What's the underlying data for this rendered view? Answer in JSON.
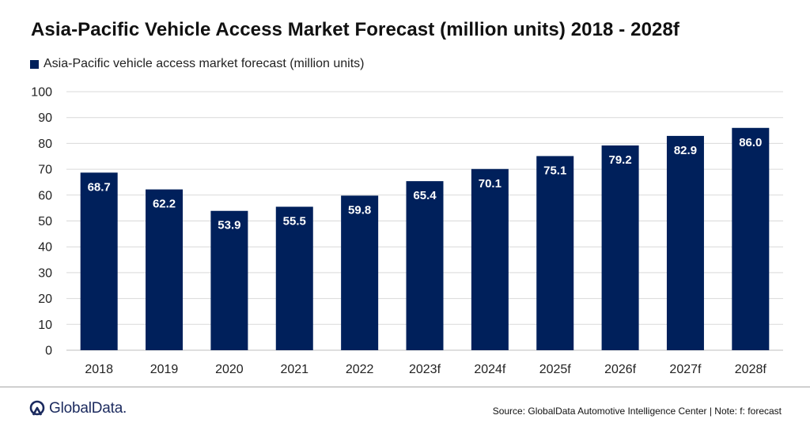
{
  "title": "Asia-Pacific Vehicle Access Market Forecast (million units) 2018 - 2028f",
  "legend": {
    "label": "Asia-Pacific vehicle access market forecast (million units)"
  },
  "footer": {
    "logo_text": "GlobalData.",
    "source_note": "Source: GlobalData Automotive Intelligence Center | Note: f: forecast"
  },
  "chart_data": {
    "type": "bar",
    "title": "Asia-Pacific Vehicle Access Market Forecast (million units) 2018 - 2028f",
    "categories": [
      "2018",
      "2019",
      "2020",
      "2021",
      "2022",
      "2023f",
      "2024f",
      "2025f",
      "2026f",
      "2027f",
      "2028f"
    ],
    "series": [
      {
        "name": "Asia-Pacific vehicle access market forecast (million units)",
        "values": [
          68.7,
          62.2,
          53.9,
          55.5,
          59.8,
          65.4,
          70.1,
          75.1,
          79.2,
          82.9,
          86.0
        ],
        "data_labels": [
          "68.7",
          "62.2",
          "53.9",
          "55.5",
          "59.8",
          "65.4",
          "70.1",
          "75.1",
          "79.2",
          "82.9",
          "86.0"
        ],
        "color": "#00205b"
      }
    ],
    "yticks": [
      0,
      10,
      20,
      30,
      40,
      50,
      60,
      70,
      80,
      90,
      100
    ],
    "ylim": [
      0,
      100
    ],
    "xlabel": "",
    "ylabel": "",
    "grid": true,
    "legend_position": "top-left"
  }
}
